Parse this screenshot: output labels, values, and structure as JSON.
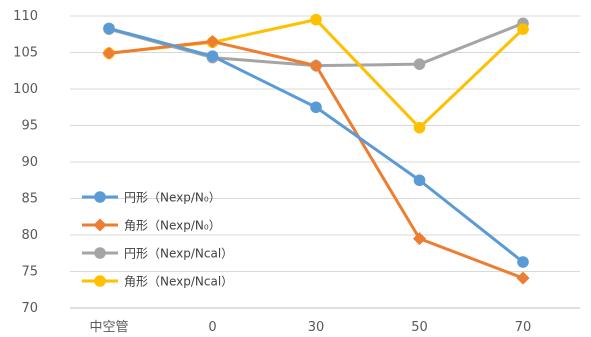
{
  "chart_data": {
    "type": "line",
    "categories": [
      "中空管",
      "0",
      "30",
      "50",
      "70"
    ],
    "y_ticks": [
      "70",
      "75",
      "80",
      "85",
      "90",
      "95",
      "100",
      "105",
      "110"
    ],
    "ylim": [
      70,
      110
    ],
    "grid": "horizontal",
    "legend_position": "left-inside",
    "series": [
      {
        "name": "円形（Nexp/N₀）",
        "color": "#5B9BD5",
        "marker": "circle",
        "values": [
          108.3,
          104.5,
          97.5,
          87.5,
          76.3
        ]
      },
      {
        "name": "角形（Nexp/N₀）",
        "color": "#ED7D31",
        "marker": "diamond",
        "values": [
          104.9,
          106.5,
          103.2,
          79.5,
          74.1
        ]
      },
      {
        "name": "円形（Nexp/Ncal）",
        "color": "#A5A5A5",
        "marker": "circle",
        "values": [
          108.2,
          104.3,
          103.2,
          103.4,
          109.0
        ]
      },
      {
        "name": "角形（Nexp/Ncal）",
        "color": "#FFC000",
        "marker": "circle",
        "values": [
          104.9,
          106.4,
          109.5,
          94.7,
          108.2
        ]
      }
    ]
  }
}
